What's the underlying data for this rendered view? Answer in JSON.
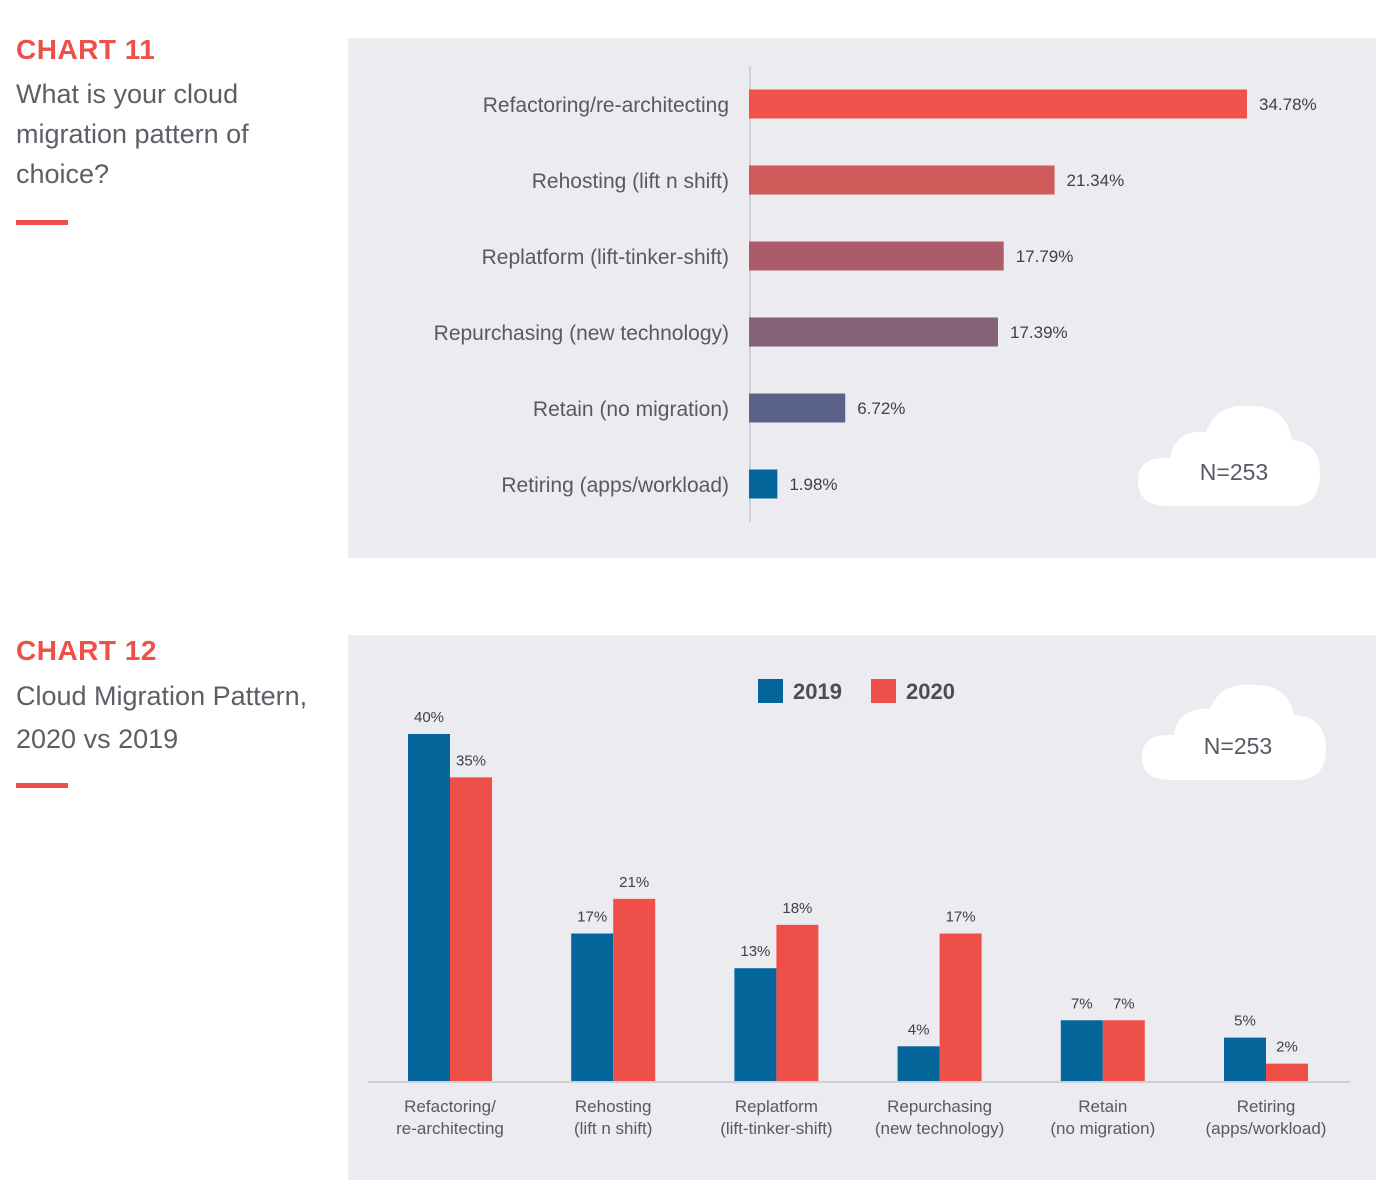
{
  "chart11": {
    "label": "CHART 11",
    "question": "What is your cloud migration pattern of choice?",
    "n_label": "N=253"
  },
  "chart12": {
    "label": "CHART 12",
    "question": "Cloud Migration Pattern, 2020 vs 2019",
    "n_label": "N=253"
  },
  "colors": {
    "accent": "#ee5049",
    "blue": "#04659a",
    "panel_bg": "#ebebf0",
    "bar_gradient": [
      "#ef514b",
      "#ce5a5a",
      "#aa5d68",
      "#846277",
      "#5b6289",
      "#04659a"
    ]
  },
  "chart_data": [
    {
      "type": "bar",
      "orientation": "horizontal",
      "categories": [
        "Refactoring/re-architecting",
        "Rehosting (lift n shift)",
        "Replatform (lift-tinker-shift)",
        "Repurchasing (new technology)",
        "Retain (no migration)",
        "Retiring (apps/workload)"
      ],
      "values": [
        34.78,
        21.34,
        17.79,
        17.39,
        6.72,
        1.98
      ],
      "data_labels": [
        "34.78%",
        "21.34%",
        "17.79%",
        "17.39%",
        "6.72%",
        "1.98%"
      ],
      "xlim": [
        0,
        40
      ],
      "grid": false
    },
    {
      "type": "bar",
      "orientation": "vertical",
      "categories": [
        [
          "Refactoring/",
          "re-architecting"
        ],
        [
          "Rehosting",
          "(lift n shift)"
        ],
        [
          "Replatform",
          "(lift-tinker-shift)"
        ],
        [
          "Repurchasing",
          "(new technology)"
        ],
        [
          "Retain",
          "(no migration)"
        ],
        [
          "Retiring",
          "(apps/workload)"
        ]
      ],
      "series": [
        {
          "name": "2019",
          "color": "#04659a",
          "values": [
            40,
            17,
            13,
            4,
            7,
            5
          ],
          "data_labels": [
            "40%",
            "17%",
            "13%",
            "4%",
            "7%",
            "5%"
          ]
        },
        {
          "name": "2020",
          "color": "#ee5049",
          "values": [
            35,
            21,
            18,
            17,
            7,
            2
          ],
          "data_labels": [
            "35%",
            "21%",
            "18%",
            "17%",
            "7%",
            "2%"
          ]
        }
      ],
      "ylim": [
        0,
        45
      ],
      "legend": "top-center",
      "grid": false
    }
  ]
}
